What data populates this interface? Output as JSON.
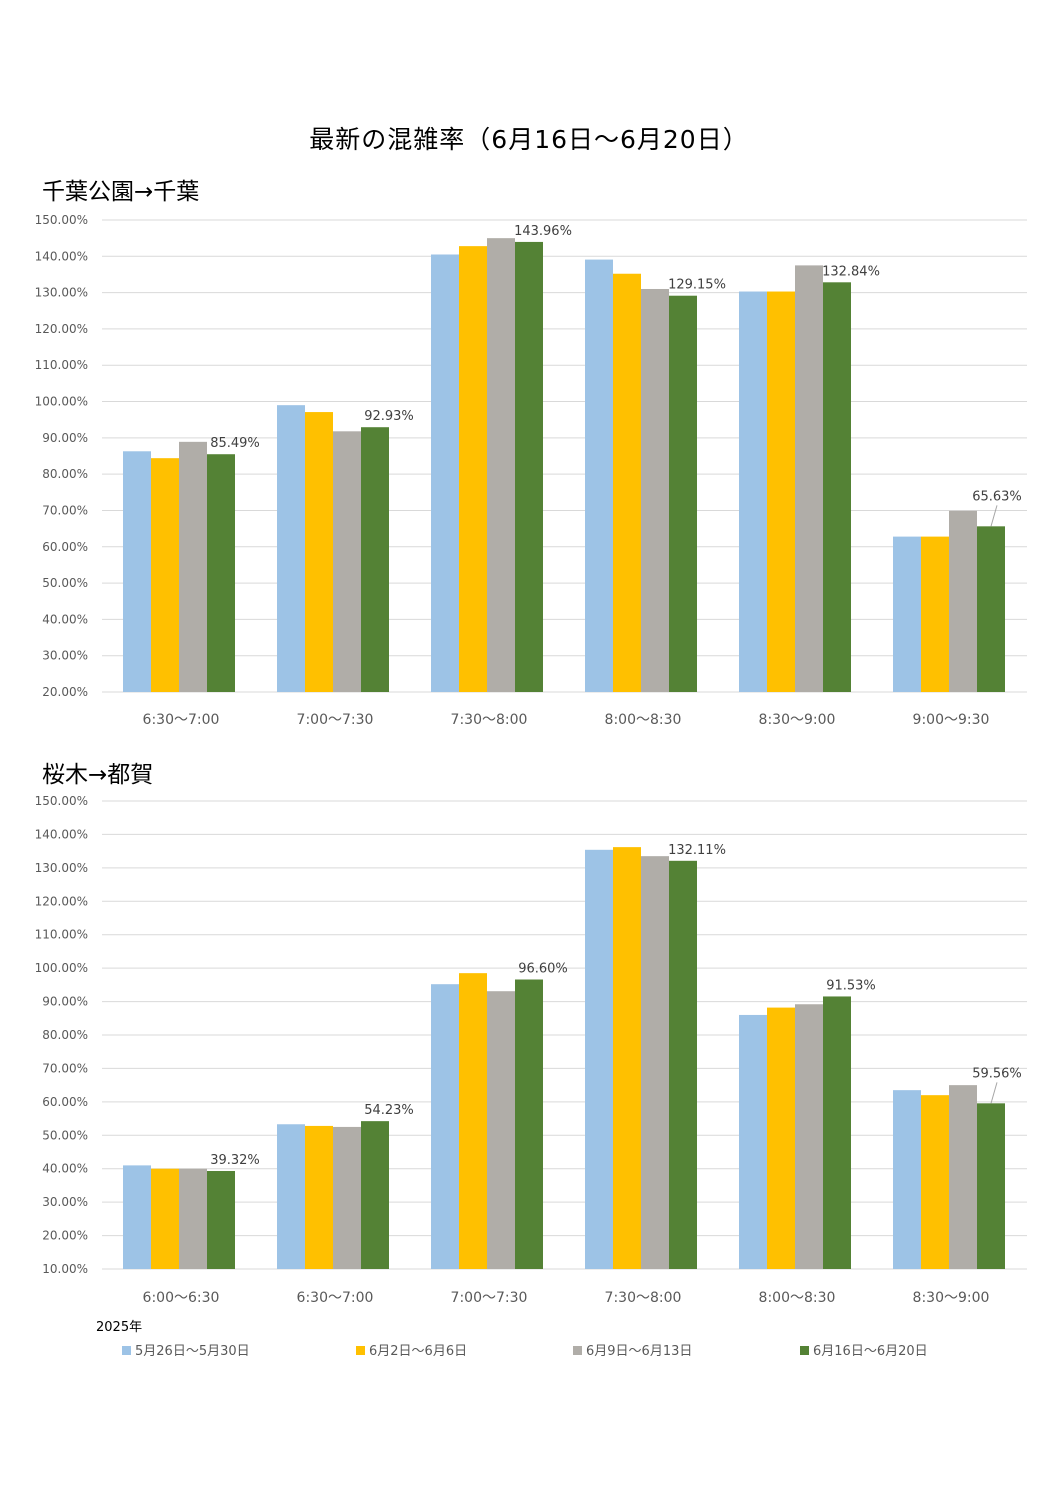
{
  "page": {
    "title": "最新の混雑率（6月16日～6月20日）"
  },
  "legend": {
    "year_label": "2025年"
  },
  "colors": [
    "#9DC3E6",
    "#FFC000",
    "#B0ADA8",
    "#548235"
  ],
  "chart_data": [
    {
      "type": "bar",
      "title": "千葉公園→千葉",
      "categories": [
        "6:30～7:00",
        "7:00～7:30",
        "7:30～8:00",
        "8:00～8:30",
        "8:30～9:00",
        "9:00～9:30"
      ],
      "series": [
        {
          "name": "5月26日～5月30日",
          "values": [
            86.3,
            99.0,
            140.5,
            139.1,
            130.3,
            62.8
          ]
        },
        {
          "name": "6月2日～6月6日",
          "values": [
            84.4,
            97.1,
            142.8,
            135.2,
            130.3,
            62.8
          ]
        },
        {
          "name": "6月9日～6月13日",
          "values": [
            88.9,
            91.8,
            145.0,
            131.0,
            137.5,
            69.9
          ]
        },
        {
          "name": "6月16日～6月20日",
          "values": [
            85.49,
            92.93,
            143.96,
            129.15,
            132.84,
            65.63
          ]
        }
      ],
      "data_labels": [
        "85.49%",
        "92.93%",
        "143.96%",
        "129.15%",
        "132.84%",
        "65.63%"
      ],
      "yticks": [
        "20.00%",
        "30.00%",
        "40.00%",
        "50.00%",
        "60.00%",
        "70.00%",
        "80.00%",
        "90.00%",
        "100.00%",
        "110.00%",
        "120.00%",
        "130.00%",
        "140.00%",
        "150.00%"
      ],
      "ylim": [
        20,
        150
      ],
      "grid": true,
      "legend_position": "bottom"
    },
    {
      "type": "bar",
      "title": "桜木→都賀",
      "categories": [
        "6:00～6:30",
        "6:30～7:00",
        "7:00～7:30",
        "7:30～8:00",
        "8:00～8:30",
        "8:30～9:00"
      ],
      "series": [
        {
          "name": "5月26日～5月30日",
          "values": [
            41.0,
            53.3,
            95.2,
            135.4,
            86.0,
            63.5
          ]
        },
        {
          "name": "6月2日～6月6日",
          "values": [
            40.0,
            52.8,
            98.5,
            136.2,
            88.2,
            62.0
          ]
        },
        {
          "name": "6月9日～6月13日",
          "values": [
            40.0,
            52.5,
            93.1,
            133.5,
            89.2,
            65.0
          ]
        },
        {
          "name": "6月16日～6月20日",
          "values": [
            39.32,
            54.23,
            96.6,
            132.11,
            91.53,
            59.56
          ]
        }
      ],
      "data_labels": [
        "39.32%",
        "54.23%",
        "96.60%",
        "132.11%",
        "91.53%",
        "59.56%"
      ],
      "yticks": [
        "10.00%",
        "20.00%",
        "30.00%",
        "40.00%",
        "50.00%",
        "60.00%",
        "70.00%",
        "80.00%",
        "90.00%",
        "100.00%",
        "110.00%",
        "120.00%",
        "130.00%",
        "140.00%",
        "150.00%"
      ],
      "ylim": [
        10,
        150
      ],
      "grid": true,
      "legend_position": "bottom"
    }
  ]
}
